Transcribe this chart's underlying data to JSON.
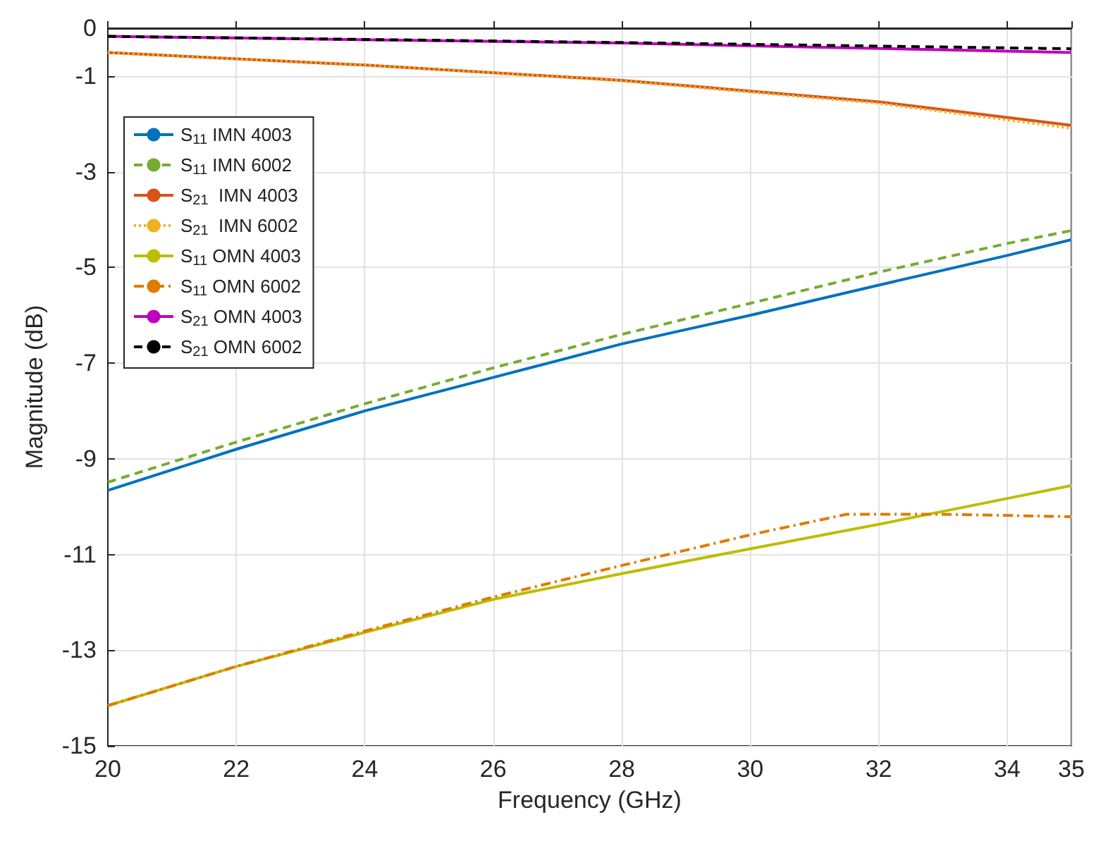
{
  "chart_data": {
    "type": "line",
    "xlabel": "Frequency (GHz)",
    "ylabel": "Magnitude (dB)",
    "xlim": [
      20,
      35
    ],
    "xticks": [
      20,
      22,
      24,
      26,
      28,
      30,
      32,
      34,
      35
    ],
    "ylim": [
      -15,
      0
    ],
    "yticks": [
      0,
      -1,
      -3,
      -5,
      -7,
      -9,
      -11,
      -13,
      -15
    ],
    "grid": true,
    "legend": "top left",
    "marker": "none",
    "series": [
      {
        "name": "S$_{11}$ IMN 4003",
        "color": "#0072bd",
        "line_style": "solid",
        "x": [
          20,
          22,
          24,
          26,
          28,
          30,
          32,
          34,
          35
        ],
        "values": [
          -9.66,
          -8.8,
          -8.0,
          -7.3,
          -6.6,
          -6.0,
          -5.37,
          -4.75,
          -4.42
        ]
      },
      {
        "name": "S$_{11}$ IMN 6002",
        "color": "#77ac30",
        "line_style": "dashed",
        "x": [
          20,
          22,
          24,
          26,
          28,
          30,
          32,
          34,
          35
        ],
        "values": [
          -9.49,
          -8.65,
          -7.85,
          -7.1,
          -6.4,
          -5.75,
          -5.1,
          -4.5,
          -4.23
        ]
      },
      {
        "name": "S$_{21}$  IMN 4003",
        "color": "#d95319",
        "line_style": "solid",
        "x": [
          20,
          24,
          28,
          32,
          35
        ],
        "values": [
          -0.51,
          -0.77,
          -1.09,
          -1.54,
          -2.03
        ]
      },
      {
        "name": "S$_{21}$  IMN 6002",
        "color": "#edb120",
        "line_style": "dotted",
        "x": [
          20,
          24,
          28,
          32,
          35
        ],
        "values": [
          -0.51,
          -0.77,
          -1.1,
          -1.57,
          -2.09
        ]
      },
      {
        "name": "S$_{11}$ OMN 4003",
        "color": "#bdbd00",
        "line_style": "solid",
        "x": [
          20,
          22,
          24,
          26,
          28,
          29.5,
          32,
          34,
          35
        ],
        "values": [
          -14.16,
          -13.34,
          -12.63,
          -11.94,
          -11.4,
          -11.01,
          -10.37,
          -9.83,
          -9.56
        ]
      },
      {
        "name": "S$_{11}$ OMN 6002",
        "color": "#e07b00",
        "line_style": "dashdot",
        "x": [
          20,
          22,
          24,
          26,
          28,
          30,
          31.5,
          33,
          35
        ],
        "values": [
          -14.16,
          -13.34,
          -12.6,
          -11.89,
          -11.23,
          -10.59,
          -10.16,
          -10.16,
          -10.21
        ]
      },
      {
        "name": "S$_{21}$ OMN 4003",
        "color": "#c000c0",
        "line_style": "solid",
        "x": [
          20,
          28,
          35
        ],
        "values": [
          -0.17,
          -0.31,
          -0.51
        ]
      },
      {
        "name": "S$_{21}$ OMN 6002",
        "color": "#000000",
        "line_style": "dashed",
        "x": [
          20,
          28,
          35
        ],
        "values": [
          -0.17,
          -0.3,
          -0.43
        ]
      }
    ]
  }
}
